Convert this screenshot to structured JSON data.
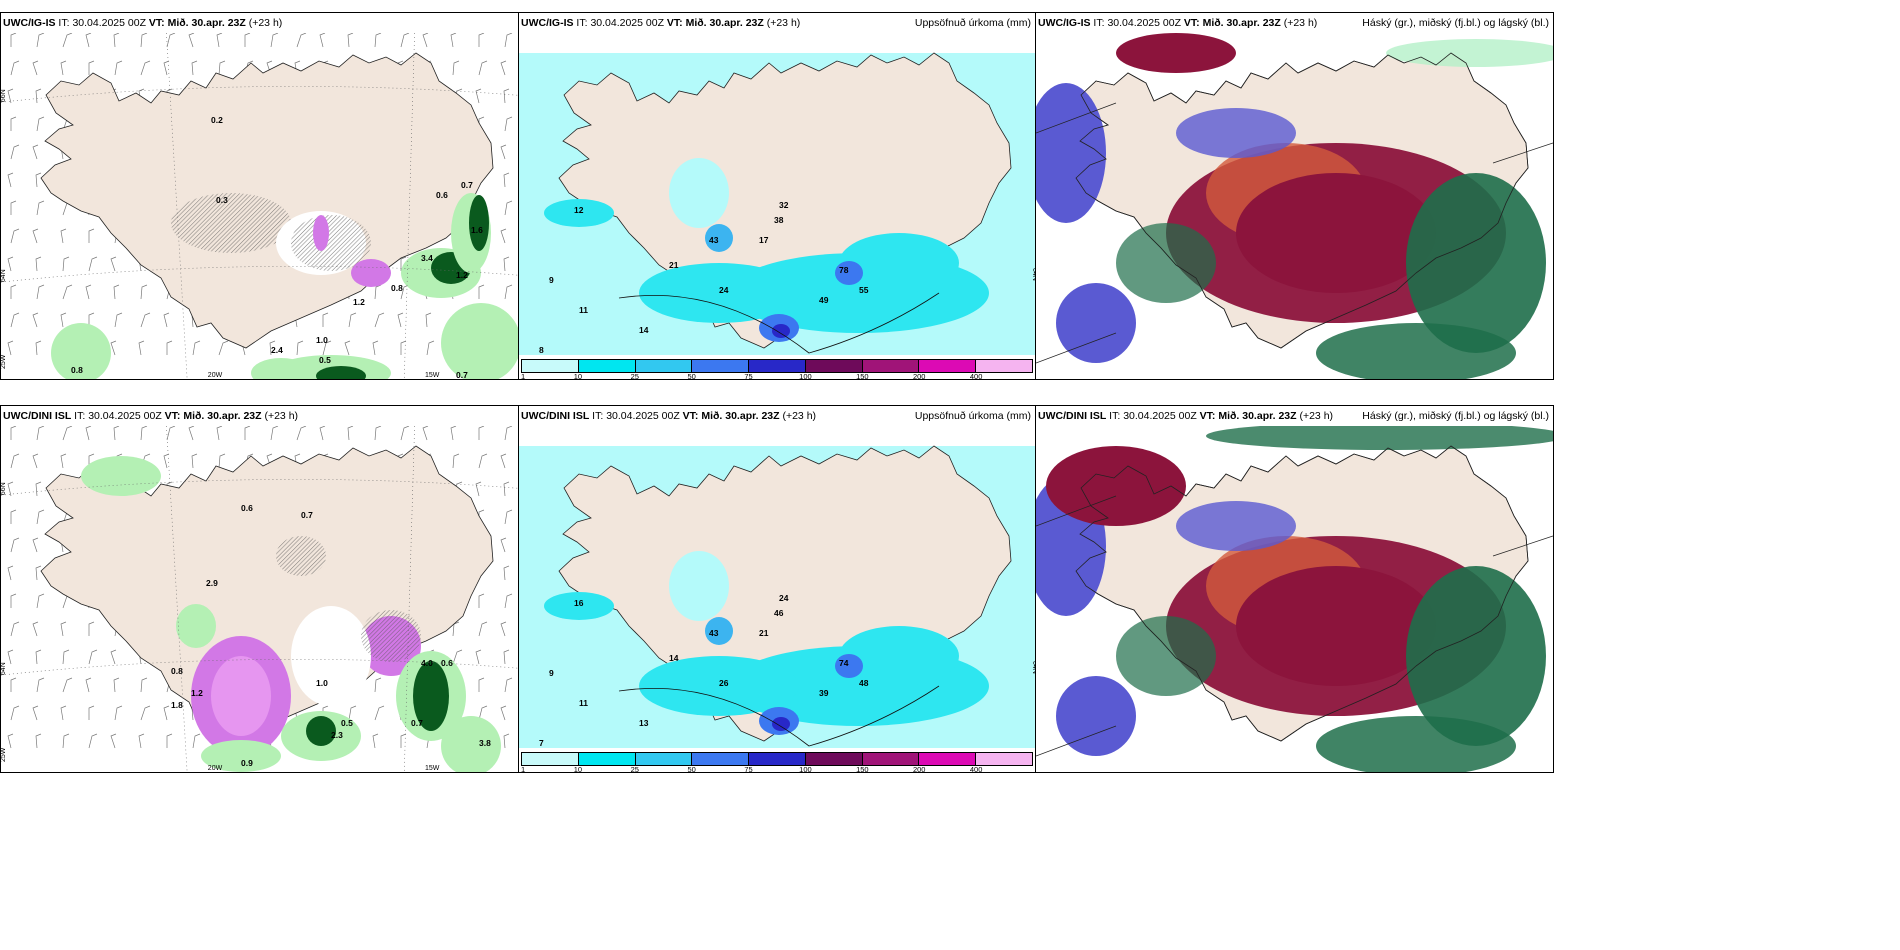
{
  "panels": [
    {
      "id": "p1",
      "model": "UWC/IG-IS",
      "it_label": "IT:",
      "it": "30.04.2025 00Z",
      "vt_label": "VT:",
      "vt": "Mið. 30.apr. 23Z",
      "lead": "(+23 h)",
      "right_title": ""
    },
    {
      "id": "p2",
      "model": "UWC/IG-IS",
      "it_label": "IT:",
      "it": "30.04.2025 00Z",
      "vt_label": "VT:",
      "vt": "Mið. 30.apr. 23Z",
      "lead": "(+23 h)",
      "right_title": "Uppsöfnuð úrkoma (mm)"
    },
    {
      "id": "p3",
      "model": "UWC/IG-IS",
      "it_label": "IT:",
      "it": "30.04.2025 00Z",
      "vt_label": "VT:",
      "vt": "Mið. 30.apr. 23Z",
      "lead": "(+23 h)",
      "right_title": "Háský (gr.), miðský (fj.bl.) og lágský (bl.)"
    },
    {
      "id": "p4",
      "model": "UWC/DINI ISL",
      "it_label": "IT:",
      "it": "30.04.2025 00Z",
      "vt_label": "VT:",
      "vt": "Mið. 30.apr. 23Z",
      "lead": "(+23 h)",
      "right_title": ""
    },
    {
      "id": "p5",
      "model": "UWC/DINI ISL",
      "it_label": "IT:",
      "it": "30.04.2025 00Z",
      "vt_label": "VT:",
      "vt": "Mið. 30.apr. 23Z",
      "lead": "(+23 h)",
      "right_title": "Uppsöfnuð úrkoma (mm)"
    },
    {
      "id": "p6",
      "model": "UWC/DINI ISL",
      "it_label": "IT:",
      "it": "30.04.2025 00Z",
      "vt_label": "VT:",
      "vt": "Mið. 30.apr. 23Z",
      "lead": "(+23 h)",
      "right_title": "Háský (gr.), miðský (fj.bl.) og lágský (bl.)"
    }
  ],
  "grid_labels": {
    "lat_66": "66N",
    "lat_64": "64N",
    "lon_20": "20W",
    "lon_15": "15W",
    "lon_25": "25W"
  },
  "precip_legend": {
    "ticks": [
      "1",
      "10",
      "25",
      "50",
      "75",
      "100",
      "150",
      "200",
      "400"
    ],
    "colors": [
      "#c8fafa",
      "#00e6f0",
      "#32c8f0",
      "#3c78f0",
      "#2828c8",
      "#6e0a5a",
      "#a01478",
      "#dc0ab4",
      "#f5b4f0"
    ]
  },
  "colors": {
    "land": "#f2e6dc",
    "precip_light": "#b4fafa",
    "precip_mid": "#2ee6f0",
    "green_light": "#b4f0b4",
    "green_dark": "#0a5a1e",
    "violet": "#d278e6",
    "cloud_high": "#1e6e4a",
    "cloud_mid": "#8c143c",
    "cloud_low": "#5a5ad2",
    "cloud_orange": "#d25a3c"
  },
  "p1_labels": [
    "0.2",
    "0.3",
    "0.6",
    "0.7",
    "1.6",
    "3.4",
    "1.2",
    "0.8",
    "1.0",
    "0.5",
    "2.4",
    "0.8",
    "0.7",
    "1.2"
  ],
  "p2_labels": [
    "12",
    "43",
    "38",
    "32",
    "78",
    "55",
    "49",
    "24",
    "17",
    "21",
    "14",
    "11",
    "9",
    "8"
  ],
  "p4_labels": [
    "0.6",
    "0.7",
    "2.9",
    "1.2",
    "0.8",
    "4.0",
    "0.6",
    "1.8",
    "1.0",
    "0.5",
    "0.7",
    "3.8",
    "0.9",
    "2.3"
  ],
  "p5_labels": [
    "16",
    "43",
    "46",
    "24",
    "74",
    "48",
    "39",
    "26",
    "21",
    "14",
    "13",
    "11",
    "9",
    "7"
  ]
}
